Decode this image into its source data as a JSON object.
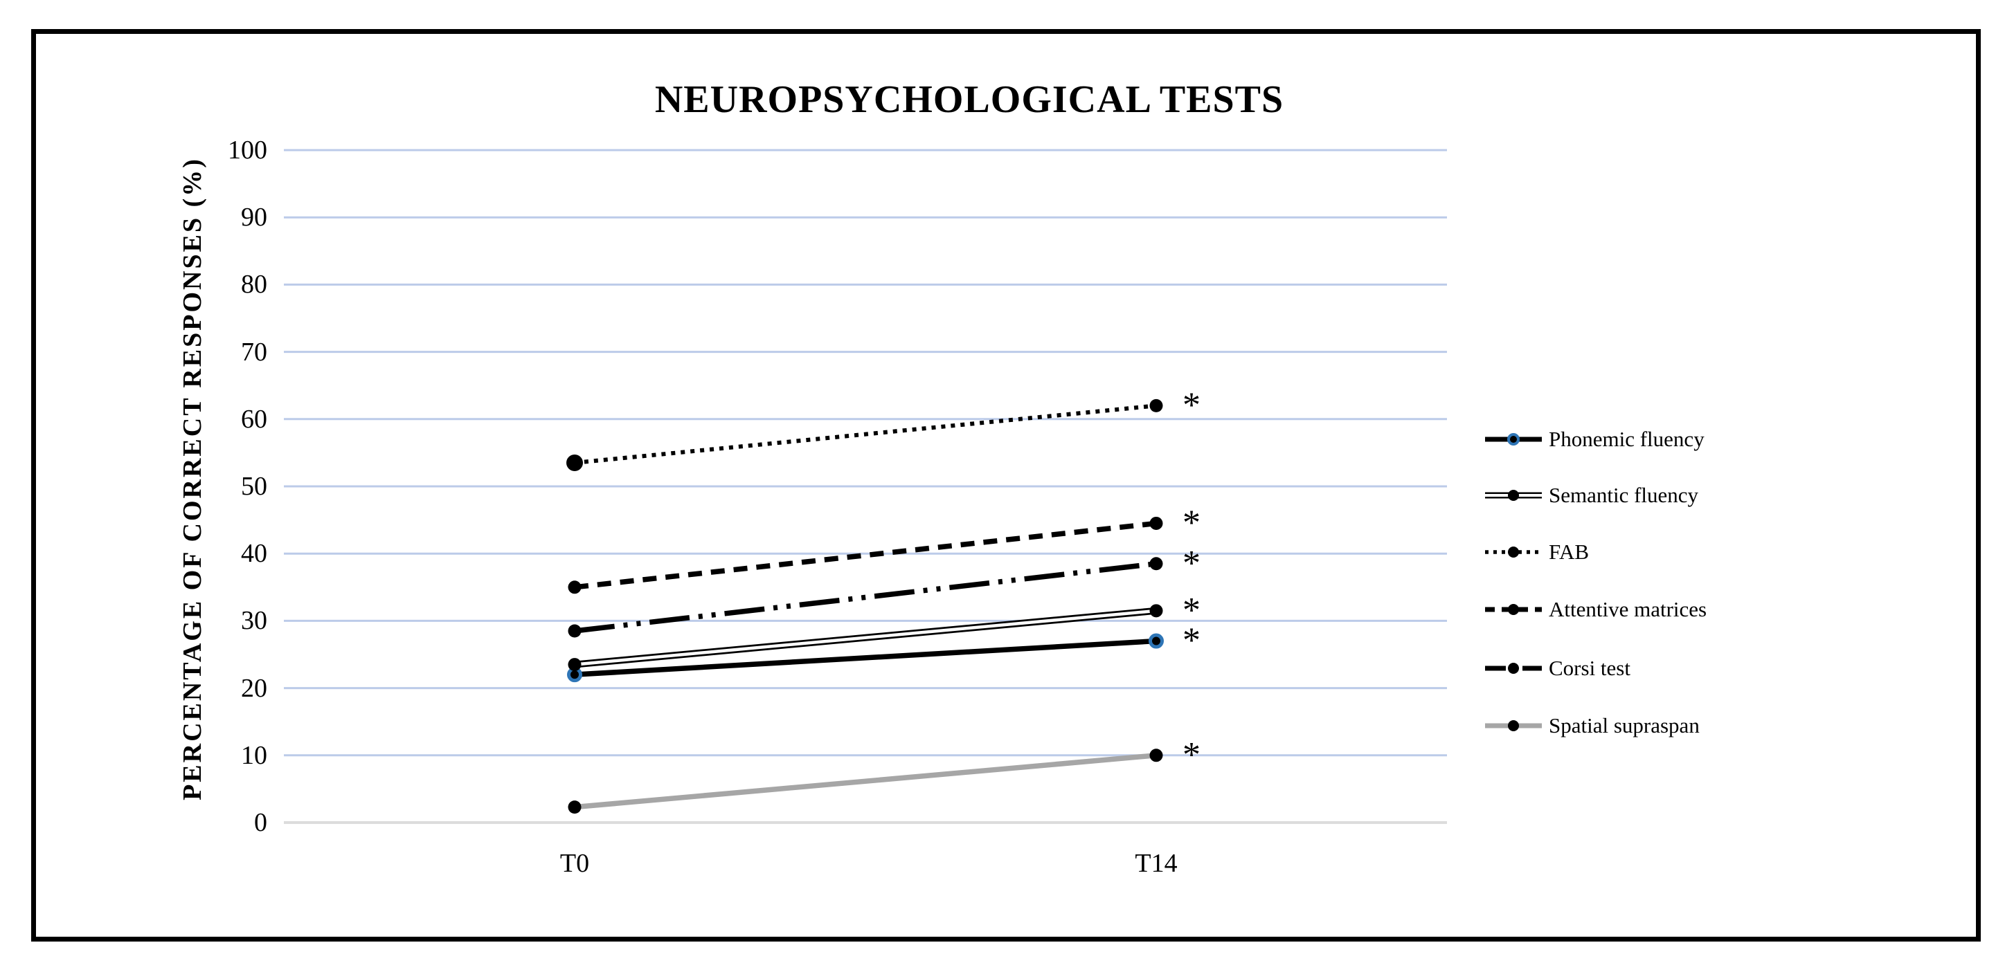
{
  "figure": {
    "background": "#ffffff",
    "frame_color": "#000000"
  },
  "chart_data": {
    "type": "line",
    "title": "NEUROPSYCHOLOGICAL TESTS",
    "ylabel": "PERCENTAGE OF CORRECT RESPONSES (%)",
    "xlabel": "",
    "categories": [
      "T0",
      "T14"
    ],
    "ylim": [
      0,
      100
    ],
    "y_ticks": [
      100,
      90,
      80,
      70,
      60,
      50,
      40,
      30,
      20,
      10,
      0
    ],
    "grid": "horizontal",
    "legend_position": "right",
    "significance_marker": "*",
    "series": [
      {
        "name": "Phonemic fluency",
        "values": [
          22,
          27
        ],
        "line_style": "solid",
        "color": "#000000",
        "marker": "circle-blue-ring",
        "significant_at_end": "*"
      },
      {
        "name": "Semantic fluency",
        "values": [
          23.5,
          31.5
        ],
        "line_style": "double",
        "color": "#000000",
        "marker": "circle",
        "significant_at_end": "*"
      },
      {
        "name": "FAB",
        "values": [
          53.5,
          62
        ],
        "line_style": "dotted",
        "color": "#000000",
        "marker": "circle",
        "significant_at_end": "*"
      },
      {
        "name": "Attentive matrices",
        "values": [
          35,
          44.5
        ],
        "line_style": "dashed",
        "color": "#000000",
        "marker": "circle",
        "significant_at_end": "*"
      },
      {
        "name": "Corsi test",
        "values": [
          28.5,
          38.5
        ],
        "line_style": "dash-dot-dot",
        "color": "#000000",
        "marker": "circle",
        "significant_at_end": "*"
      },
      {
        "name": "Spatial supraspan",
        "values": [
          2.3,
          10
        ],
        "line_style": "solid",
        "color": "#a6a6a6",
        "marker": "circle",
        "significant_at_end": "*"
      }
    ],
    "colors": {
      "gridline": "#bccbe9",
      "axis_line": "#dcdcdc",
      "marker_fill": "#000000",
      "phonemic_marker_ring": "#2e75b6",
      "spatial_line": "#a6a6a6",
      "text": "#000000"
    }
  }
}
